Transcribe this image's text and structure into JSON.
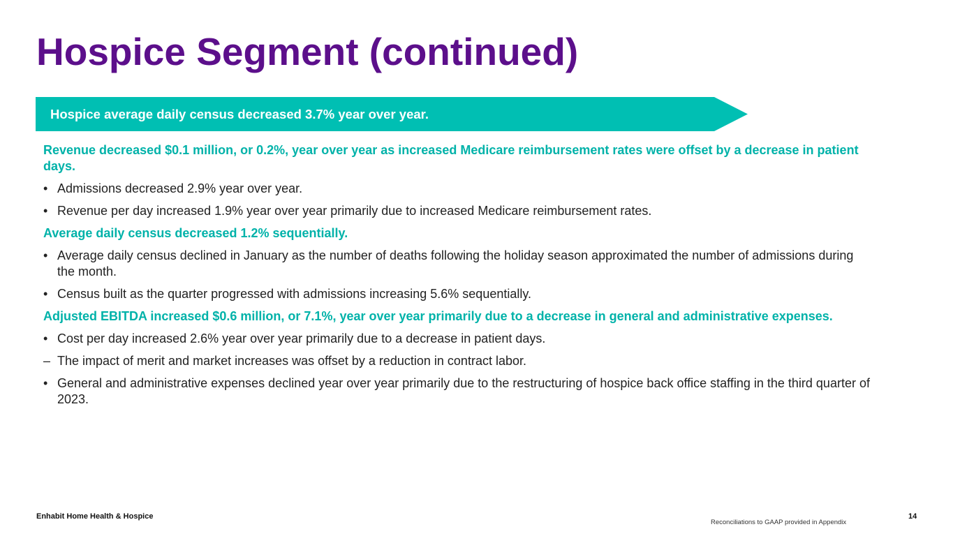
{
  "slide": {
    "title": "Hospice Segment (continued)",
    "banner": "Hospice average daily census decreased 3.7% year over year.",
    "colors": {
      "title": "#5c0f8b",
      "banner_bg": "#00bfb3",
      "heading": "#00b2a9"
    }
  },
  "content": {
    "sections": [
      {
        "heading": "Revenue decreased $0.1 million, or 0.2%, year over year as increased Medicare reimbursement rates were offset by a decrease in patient days.",
        "bullets": [
          "Admissions decreased 2.9% year over year.",
          "Revenue per day increased 1.9% year over year primarily due to increased Medicare reimbursement rates."
        ]
      },
      {
        "heading": "Average daily census decreased 1.2% sequentially.",
        "bullets": [
          "Average daily census declined in January as the number of deaths following the holiday season approximated the number of admissions during the month.",
          "Census built as the quarter progressed with admissions increasing 5.6% sequentially."
        ]
      },
      {
        "heading": "Adjusted EBITDA increased $0.6 million, or 7.1%, year over year primarily due to a decrease in general and administrative expenses.",
        "bullets": [
          "Cost per day increased 2.6% year over year primarily due to a decrease in patient days."
        ],
        "sub_bullets": [
          "The impact of merit and market increases was offset by a reduction in contract labor."
        ],
        "bullets_after": [
          "General and administrative expenses declined year over year primarily due to the restructuring of hospice back office staffing in the third quarter of 2023."
        ]
      }
    ],
    "bullet_marker": "•",
    "sub_bullet_marker": "–"
  },
  "footer": {
    "company": "Enhabit Home Health & Hospice",
    "note": "Reconciliations to GAAP provided in Appendix",
    "page": "14"
  }
}
